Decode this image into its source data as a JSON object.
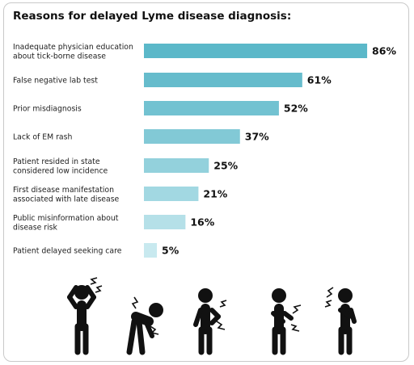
{
  "chart_data": {
    "type": "bar",
    "orientation": "horizontal",
    "title": "Reasons for delayed Lyme disease diagnosis:",
    "categories": [
      "Inadequate physician education|about tick-borne disease",
      "False negative lab test",
      "Prior misdiagnosis",
      "Lack of EM rash",
      "Patient resided in state|considered low incidence",
      "First disease manifestation|associated with late disease",
      "Public misinformation about|disease risk",
      "Patient delayed seeking care"
    ],
    "values": [
      86,
      61,
      52,
      37,
      25,
      21,
      16,
      5
    ],
    "value_labels": [
      "86%",
      "61%",
      "52%",
      "37%",
      "25%",
      "21%",
      "16%",
      "5%"
    ],
    "bar_colors": [
      "#5bb8c9",
      "#66bccc",
      "#72c2d1",
      "#82c9d6",
      "#93d1dc",
      "#a2d8e2",
      "#b5e0e8",
      "#c8e9ef"
    ],
    "xlim": [
      0,
      100
    ],
    "grid": false,
    "legend": "none"
  },
  "figures": {
    "icon_names": [
      "headache-icon",
      "back-pain-icon",
      "shoulder-pain-icon",
      "stomach-pain-icon",
      "chest-pain-icon"
    ],
    "color": "#111111"
  }
}
